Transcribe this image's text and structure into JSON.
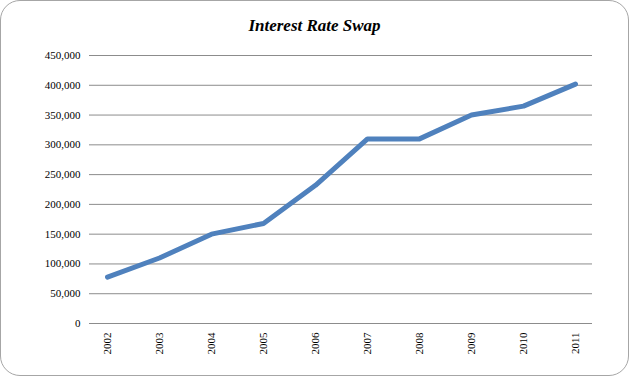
{
  "chart_data": {
    "type": "line",
    "title": "Interest Rate Swap",
    "categories": [
      "2002",
      "2003",
      "2004",
      "2005",
      "2006",
      "2007",
      "2008",
      "2009",
      "2010",
      "2011"
    ],
    "values": [
      78000,
      110000,
      150000,
      168000,
      232000,
      310000,
      310000,
      350000,
      365000,
      402000
    ],
    "color": "#4f81bd",
    "ylim": [
      0,
      450000
    ],
    "yticks": [
      0,
      {
        "value": 50000,
        "label": "50,000"
      },
      {
        "value": 100000,
        "label": "100,000"
      },
      {
        "value": 150000,
        "label": "150,000"
      },
      {
        "value": 200000,
        "label": "200,000"
      },
      {
        "value": 250000,
        "label": "250,000"
      },
      {
        "value": 300000,
        "label": "300,000"
      },
      {
        "value": 350000,
        "label": "350,000"
      },
      {
        "value": 400000,
        "label": "400,000"
      },
      {
        "value": 450000,
        "label": "450,000"
      }
    ],
    "grid": true
  }
}
